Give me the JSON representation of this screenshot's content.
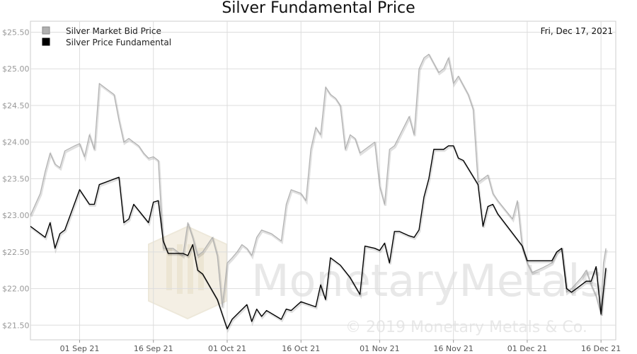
{
  "chart_data": {
    "type": "line",
    "title": "Silver Fundamental Price",
    "date_label": "Fri, Dec 17, 2021",
    "xlabel": "",
    "ylabel": "",
    "ylim": [
      21.3,
      25.65
    ],
    "xlim": [
      "2021-08-22",
      "2021-12-19"
    ],
    "y_ticks": [
      21.5,
      22.0,
      22.5,
      23.0,
      23.5,
      24.0,
      24.5,
      25.0,
      25.5
    ],
    "y_tick_labels": [
      "$21.50",
      "$22.00",
      "$22.50",
      "$23.00",
      "$23.50",
      "$24.00",
      "$24.50",
      "$25.00",
      "$25.50"
    ],
    "x_ticks": [
      "2021-09-01",
      "2021-09-16",
      "2021-10-01",
      "2021-10-16",
      "2021-11-01",
      "2021-11-16",
      "2021-12-01",
      "2021-12-16"
    ],
    "x_tick_labels": [
      "01 Sep 21",
      "16 Sep 21",
      "01 Oct 21",
      "16 Oct 21",
      "01 Nov 21",
      "16 Nov 21",
      "01 Dec 21",
      "16 Dec 21"
    ],
    "grid": true,
    "legend_position": "top-left",
    "series": [
      {
        "name": "Silver Market Bid Price",
        "color": "#b0b0b0",
        "points": [
          [
            "2021-08-22",
            23.0
          ],
          [
            "2021-08-24",
            23.3
          ],
          [
            "2021-08-25",
            23.6
          ],
          [
            "2021-08-26",
            23.85
          ],
          [
            "2021-08-27",
            23.7
          ],
          [
            "2021-08-28",
            23.65
          ],
          [
            "2021-08-29",
            23.88
          ],
          [
            "2021-08-31",
            23.95
          ],
          [
            "2021-09-01",
            23.98
          ],
          [
            "2021-09-02",
            23.8
          ],
          [
            "2021-09-03",
            24.1
          ],
          [
            "2021-09-04",
            23.9
          ],
          [
            "2021-09-05",
            24.8
          ],
          [
            "2021-09-07",
            24.7
          ],
          [
            "2021-09-08",
            24.65
          ],
          [
            "2021-09-09",
            24.3
          ],
          [
            "2021-09-10",
            24.0
          ],
          [
            "2021-09-11",
            24.05
          ],
          [
            "2021-09-12",
            24.0
          ],
          [
            "2021-09-13",
            23.95
          ],
          [
            "2021-09-14",
            23.85
          ],
          [
            "2021-09-15",
            23.78
          ],
          [
            "2021-09-16",
            23.8
          ],
          [
            "2021-09-17",
            23.75
          ],
          [
            "2021-09-18",
            22.55
          ],
          [
            "2021-09-19",
            22.55
          ],
          [
            "2021-09-20",
            22.55
          ],
          [
            "2021-09-22",
            22.45
          ],
          [
            "2021-09-23",
            22.9
          ],
          [
            "2021-09-24",
            22.7
          ],
          [
            "2021-09-25",
            22.45
          ],
          [
            "2021-09-26",
            22.5
          ],
          [
            "2021-09-28",
            22.7
          ],
          [
            "2021-09-29",
            22.45
          ],
          [
            "2021-09-30",
            21.75
          ],
          [
            "2021-10-01",
            22.35
          ],
          [
            "2021-10-02",
            22.42
          ],
          [
            "2021-10-03",
            22.5
          ],
          [
            "2021-10-04",
            22.6
          ],
          [
            "2021-10-05",
            22.55
          ],
          [
            "2021-10-06",
            22.45
          ],
          [
            "2021-10-07",
            22.7
          ],
          [
            "2021-10-08",
            22.8
          ],
          [
            "2021-10-10",
            22.75
          ],
          [
            "2021-10-12",
            22.65
          ],
          [
            "2021-10-13",
            23.15
          ],
          [
            "2021-10-14",
            23.35
          ],
          [
            "2021-10-16",
            23.3
          ],
          [
            "2021-10-17",
            23.2
          ],
          [
            "2021-10-18",
            23.9
          ],
          [
            "2021-10-19",
            24.2
          ],
          [
            "2021-10-20",
            24.1
          ],
          [
            "2021-10-21",
            24.75
          ],
          [
            "2021-10-22",
            24.65
          ],
          [
            "2021-10-23",
            24.6
          ],
          [
            "2021-10-24",
            24.5
          ],
          [
            "2021-10-25",
            23.9
          ],
          [
            "2021-10-26",
            24.1
          ],
          [
            "2021-10-27",
            24.05
          ],
          [
            "2021-10-28",
            23.85
          ],
          [
            "2021-10-30",
            23.95
          ],
          [
            "2021-10-31",
            24.0
          ],
          [
            "2021-11-01",
            23.4
          ],
          [
            "2021-11-02",
            23.15
          ],
          [
            "2021-11-03",
            23.9
          ],
          [
            "2021-11-04",
            23.95
          ],
          [
            "2021-11-07",
            24.35
          ],
          [
            "2021-11-08",
            24.1
          ],
          [
            "2021-11-09",
            25.0
          ],
          [
            "2021-11-10",
            25.15
          ],
          [
            "2021-11-11",
            25.2
          ],
          [
            "2021-11-13",
            24.95
          ],
          [
            "2021-11-14",
            25.0
          ],
          [
            "2021-11-15",
            25.15
          ],
          [
            "2021-11-16",
            24.8
          ],
          [
            "2021-11-17",
            24.9
          ],
          [
            "2021-11-19",
            24.65
          ],
          [
            "2021-11-20",
            24.45
          ],
          [
            "2021-11-21",
            23.45
          ],
          [
            "2021-11-22",
            23.5
          ],
          [
            "2021-11-23",
            23.55
          ],
          [
            "2021-11-24",
            23.3
          ],
          [
            "2021-11-25",
            23.2
          ],
          [
            "2021-11-28",
            22.95
          ],
          [
            "2021-11-29",
            23.2
          ],
          [
            "2021-11-30",
            22.55
          ],
          [
            "2021-12-01",
            22.35
          ],
          [
            "2021-12-02",
            22.22
          ],
          [
            "2021-12-04",
            22.28
          ],
          [
            "2021-12-06",
            22.35
          ],
          [
            "2021-12-07",
            22.5
          ],
          [
            "2021-12-08",
            22.55
          ],
          [
            "2021-12-09",
            21.95
          ],
          [
            "2021-12-10",
            22.0
          ],
          [
            "2021-12-12",
            22.15
          ],
          [
            "2021-12-13",
            22.25
          ],
          [
            "2021-12-14",
            22.05
          ],
          [
            "2021-12-15",
            21.9
          ],
          [
            "2021-12-16",
            21.65
          ],
          [
            "2021-12-16T12",
            22.35
          ],
          [
            "2021-12-17",
            22.55
          ]
        ]
      },
      {
        "name": "Silver Price Fundamental",
        "color": "#000000",
        "points": [
          [
            "2021-08-22",
            22.85
          ],
          [
            "2021-08-25",
            22.7
          ],
          [
            "2021-08-26",
            22.9
          ],
          [
            "2021-08-27",
            22.55
          ],
          [
            "2021-08-28",
            22.75
          ],
          [
            "2021-08-29",
            22.8
          ],
          [
            "2021-09-01",
            23.35
          ],
          [
            "2021-09-03",
            23.15
          ],
          [
            "2021-09-04",
            23.15
          ],
          [
            "2021-09-05",
            23.42
          ],
          [
            "2021-09-09",
            23.52
          ],
          [
            "2021-09-10",
            22.9
          ],
          [
            "2021-09-11",
            22.95
          ],
          [
            "2021-09-12",
            23.15
          ],
          [
            "2021-09-15",
            22.9
          ],
          [
            "2021-09-16",
            23.18
          ],
          [
            "2021-09-17",
            23.2
          ],
          [
            "2021-09-18",
            22.65
          ],
          [
            "2021-09-19",
            22.48
          ],
          [
            "2021-09-22",
            22.48
          ],
          [
            "2021-09-23",
            22.45
          ],
          [
            "2021-09-24",
            22.6
          ],
          [
            "2021-09-25",
            22.25
          ],
          [
            "2021-09-26",
            22.2
          ],
          [
            "2021-09-29",
            21.85
          ],
          [
            "2021-09-30",
            21.65
          ],
          [
            "2021-10-01",
            21.45
          ],
          [
            "2021-10-02",
            21.58
          ],
          [
            "2021-10-05",
            21.78
          ],
          [
            "2021-10-06",
            21.55
          ],
          [
            "2021-10-07",
            21.72
          ],
          [
            "2021-10-08",
            21.62
          ],
          [
            "2021-10-09",
            21.7
          ],
          [
            "2021-10-12",
            21.58
          ],
          [
            "2021-10-13",
            21.72
          ],
          [
            "2021-10-14",
            21.7
          ],
          [
            "2021-10-16",
            21.82
          ],
          [
            "2021-10-19",
            21.75
          ],
          [
            "2021-10-20",
            22.05
          ],
          [
            "2021-10-21",
            21.85
          ],
          [
            "2021-10-22",
            22.42
          ],
          [
            "2021-10-24",
            22.32
          ],
          [
            "2021-10-26",
            22.15
          ],
          [
            "2021-10-28",
            21.92
          ],
          [
            "2021-10-29",
            22.58
          ],
          [
            "2021-10-31",
            22.55
          ],
          [
            "2021-11-01",
            22.52
          ],
          [
            "2021-11-02",
            22.62
          ],
          [
            "2021-11-03",
            22.35
          ],
          [
            "2021-11-04",
            22.78
          ],
          [
            "2021-11-05",
            22.78
          ],
          [
            "2021-11-07",
            22.72
          ],
          [
            "2021-11-08",
            22.7
          ],
          [
            "2021-11-09",
            22.8
          ],
          [
            "2021-11-10",
            23.25
          ],
          [
            "2021-11-11",
            23.5
          ],
          [
            "2021-11-12",
            23.9
          ],
          [
            "2021-11-14",
            23.9
          ],
          [
            "2021-11-15",
            23.95
          ],
          [
            "2021-11-16",
            23.95
          ],
          [
            "2021-11-17",
            23.78
          ],
          [
            "2021-11-18",
            23.75
          ],
          [
            "2021-11-21",
            23.42
          ],
          [
            "2021-11-22",
            22.85
          ],
          [
            "2021-11-23",
            23.12
          ],
          [
            "2021-11-24",
            23.15
          ],
          [
            "2021-11-25",
            23.02
          ],
          [
            "2021-11-30",
            22.58
          ],
          [
            "2021-12-01",
            22.38
          ],
          [
            "2021-12-02",
            22.38
          ],
          [
            "2021-12-06",
            22.38
          ],
          [
            "2021-12-07",
            22.5
          ],
          [
            "2021-12-08",
            22.55
          ],
          [
            "2021-12-09",
            22.0
          ],
          [
            "2021-12-10",
            21.95
          ],
          [
            "2021-12-13",
            22.1
          ],
          [
            "2021-12-14",
            22.1
          ],
          [
            "2021-12-15",
            22.3
          ],
          [
            "2021-12-16",
            21.65
          ],
          [
            "2021-12-17",
            22.28
          ]
        ]
      }
    ]
  },
  "watermark": {
    "brand": "MonetaryMetals",
    "copyright": "© 2019 Monetary Metals & Co."
  }
}
